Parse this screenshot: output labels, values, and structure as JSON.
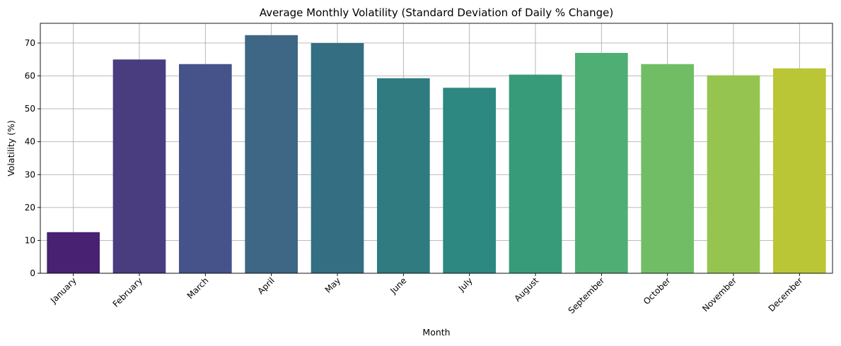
{
  "chart_data": {
    "type": "bar",
    "title": "Average Monthly Volatility (Standard Deviation of Daily % Change)",
    "xlabel": "Month",
    "ylabel": "Volatility (%)",
    "categories": [
      "January",
      "February",
      "March",
      "April",
      "May",
      "June",
      "July",
      "August",
      "September",
      "October",
      "November",
      "December"
    ],
    "values": [
      12.5,
      65.0,
      63.6,
      72.4,
      70.0,
      59.3,
      56.4,
      60.4,
      67.0,
      63.6,
      60.2,
      62.3
    ],
    "colors": [
      "#482173",
      "#493d80",
      "#46528a",
      "#3e6685",
      "#346e83",
      "#2f7b80",
      "#2c8880",
      "#379b79",
      "#4fae73",
      "#71bd66",
      "#95c550",
      "#bac635"
    ],
    "ylim": [
      0,
      76
    ],
    "yticks": [
      0,
      10,
      20,
      30,
      40,
      50,
      60,
      70
    ],
    "grid": true,
    "legend": "none",
    "xtick_rotation": 45
  }
}
